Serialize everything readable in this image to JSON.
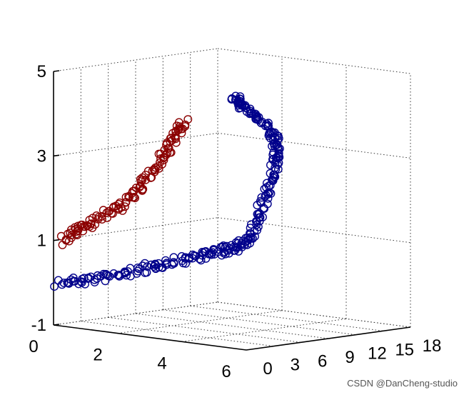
{
  "chart_data": {
    "type": "scatter",
    "dimensions": 3,
    "xlim": [
      0,
      6
    ],
    "ylim": [
      0,
      18
    ],
    "zlim": [
      -1,
      5
    ],
    "x_ticks": [
      "0",
      "2",
      "4",
      "6"
    ],
    "y_ticks": [
      "0",
      "3",
      "6",
      "9",
      "12",
      "15",
      "18"
    ],
    "z_ticks": [
      "-1",
      "1",
      "3",
      "5"
    ],
    "grid": true,
    "marker": "open-circle",
    "series": [
      {
        "color": "#00008b",
        "points": [
          [
            0.1,
            0.2,
            0.0
          ],
          [
            0.7,
            0.6,
            0.1
          ],
          [
            1.4,
            1.0,
            0.25
          ],
          [
            2.0,
            1.5,
            0.4
          ],
          [
            2.6,
            2.0,
            0.6
          ],
          [
            3.1,
            2.6,
            0.75
          ],
          [
            3.6,
            3.2,
            0.9
          ],
          [
            4.0,
            3.8,
            1.0
          ],
          [
            4.3,
            4.5,
            1.1
          ],
          [
            4.5,
            5.0,
            1.2
          ],
          [
            4.6,
            5.5,
            1.5
          ],
          [
            4.7,
            6.0,
            1.9
          ],
          [
            4.8,
            6.5,
            2.4
          ],
          [
            4.8,
            7.0,
            2.8
          ],
          [
            4.9,
            7.2,
            3.2
          ],
          [
            4.9,
            7.3,
            3.5
          ],
          [
            4.8,
            7.0,
            3.8
          ],
          [
            4.6,
            6.5,
            4.1
          ],
          [
            4.4,
            6.0,
            4.3
          ],
          [
            4.2,
            5.6,
            4.5
          ],
          [
            4.0,
            5.5,
            4.6
          ]
        ]
      },
      {
        "color": "#8b0000",
        "points": [
          [
            0.2,
            0.2,
            1.0
          ],
          [
            0.6,
            0.5,
            1.3
          ],
          [
            1.0,
            0.7,
            1.5
          ],
          [
            1.5,
            0.9,
            1.8
          ],
          [
            2.0,
            1.1,
            2.1
          ],
          [
            2.4,
            1.2,
            2.5
          ],
          [
            2.8,
            1.4,
            3.0
          ],
          [
            3.1,
            1.5,
            3.4
          ],
          [
            3.4,
            1.6,
            3.8
          ],
          [
            3.6,
            1.7,
            4.1
          ]
        ]
      }
    ]
  }
}
